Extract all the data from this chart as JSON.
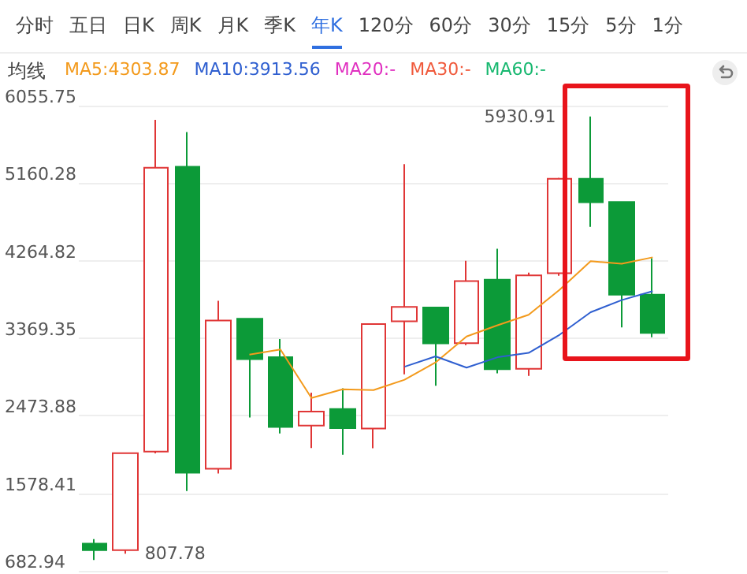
{
  "chart_data": {
    "type": "candlestick",
    "categories": [
      null,
      null,
      null,
      null,
      null,
      null,
      null,
      null,
      null,
      null,
      null,
      null,
      null,
      null,
      null,
      null,
      null,
      null,
      null
    ],
    "ohlc": [
      [
        998,
        1050,
        807.78,
        923
      ],
      [
        923,
        2050,
        880,
        2041
      ],
      [
        2060,
        5891,
        2040,
        5338
      ],
      [
        5349,
        5750,
        1605,
        1817
      ],
      [
        1862,
        3803,
        1808,
        3575
      ],
      [
        3595,
        3597,
        2455,
        3128
      ],
      [
        3150,
        3360,
        2270,
        2346
      ],
      [
        2361,
        2740,
        2102,
        2522
      ],
      [
        2551,
        2791,
        2023,
        2331
      ],
      [
        2326,
        3540,
        2100,
        3533
      ],
      [
        3566,
        5380,
        2952,
        3731
      ],
      [
        3725,
        3726,
        2821,
        3310
      ],
      [
        3313,
        4264,
        3290,
        4030
      ],
      [
        4045,
        4403,
        2964,
        3011
      ],
      [
        3017,
        4127,
        2935,
        4096
      ],
      [
        4121,
        5222,
        4090,
        5211
      ],
      [
        5212,
        5930.91,
        4655,
        4940
      ],
      [
        4943,
        4945,
        3495,
        3872
      ],
      [
        3872,
        4293,
        3380,
        3431
      ]
    ],
    "colors": [
      "#0c9a38",
      "#e03636",
      "#e03636",
      "#0c9a38",
      "#e03636",
      "#0c9a38",
      "#0c9a38",
      "#e03636",
      "#0c9a38",
      "#e03636",
      "#e03636",
      "#0c9a38",
      "#e03636",
      "#0c9a38",
      "#e03636",
      "#e03636",
      "#0c9a38",
      "#0c9a38",
      "#0c9a38"
    ],
    "series": [
      {
        "type": "line",
        "name": "MA5:4303.87",
        "color": "#f39a1c",
        "values": [
          null,
          null,
          null,
          null,
          null,
          3180,
          3240,
          2680,
          2780,
          2770,
          2890,
          3090,
          3390,
          3520,
          3640,
          3930,
          4260,
          4230,
          4303.87
        ]
      },
      {
        "type": "line",
        "name": "MA10:3913.56",
        "color": "#2f5fd0",
        "values": [
          null,
          null,
          null,
          null,
          null,
          null,
          null,
          null,
          null,
          null,
          3040,
          3160,
          3030,
          3150,
          3200,
          3410,
          3670,
          3810,
          3913.56
        ]
      },
      {
        "type": "line",
        "name": "MA20:-",
        "color": "#e030c0",
        "values": [
          null,
          null,
          null,
          null,
          null,
          null,
          null,
          null,
          null,
          null,
          null,
          null,
          null,
          null,
          null,
          null,
          null,
          null,
          null
        ]
      },
      {
        "type": "line",
        "name": "MA30:-",
        "color": "#f05a3c",
        "values": [
          null,
          null,
          null,
          null,
          null,
          null,
          null,
          null,
          null,
          null,
          null,
          null,
          null,
          null,
          null,
          null,
          null,
          null,
          null
        ]
      },
      {
        "type": "line",
        "name": "MA60:-",
        "color": "#18b870",
        "values": [
          null,
          null,
          null,
          null,
          null,
          null,
          null,
          null,
          null,
          null,
          null,
          null,
          null,
          null,
          null,
          null,
          null,
          null,
          null
        ]
      }
    ],
    "ylim": [
      682.94,
      6055.75
    ],
    "yticks": [
      682.94,
      1578.41,
      2473.88,
      3369.35,
      4264.82,
      5160.28,
      6055.75
    ],
    "grid": "y",
    "tick_labels": "y",
    "legend": "top left",
    "annotations": [
      "分时",
      "五日",
      "日K",
      "周K",
      "月K",
      "季K",
      "年K",
      "120分",
      "60分",
      "30分",
      "15分",
      "5分",
      "1分",
      "均线",
      "5930.91",
      "807.78"
    ]
  }
}
